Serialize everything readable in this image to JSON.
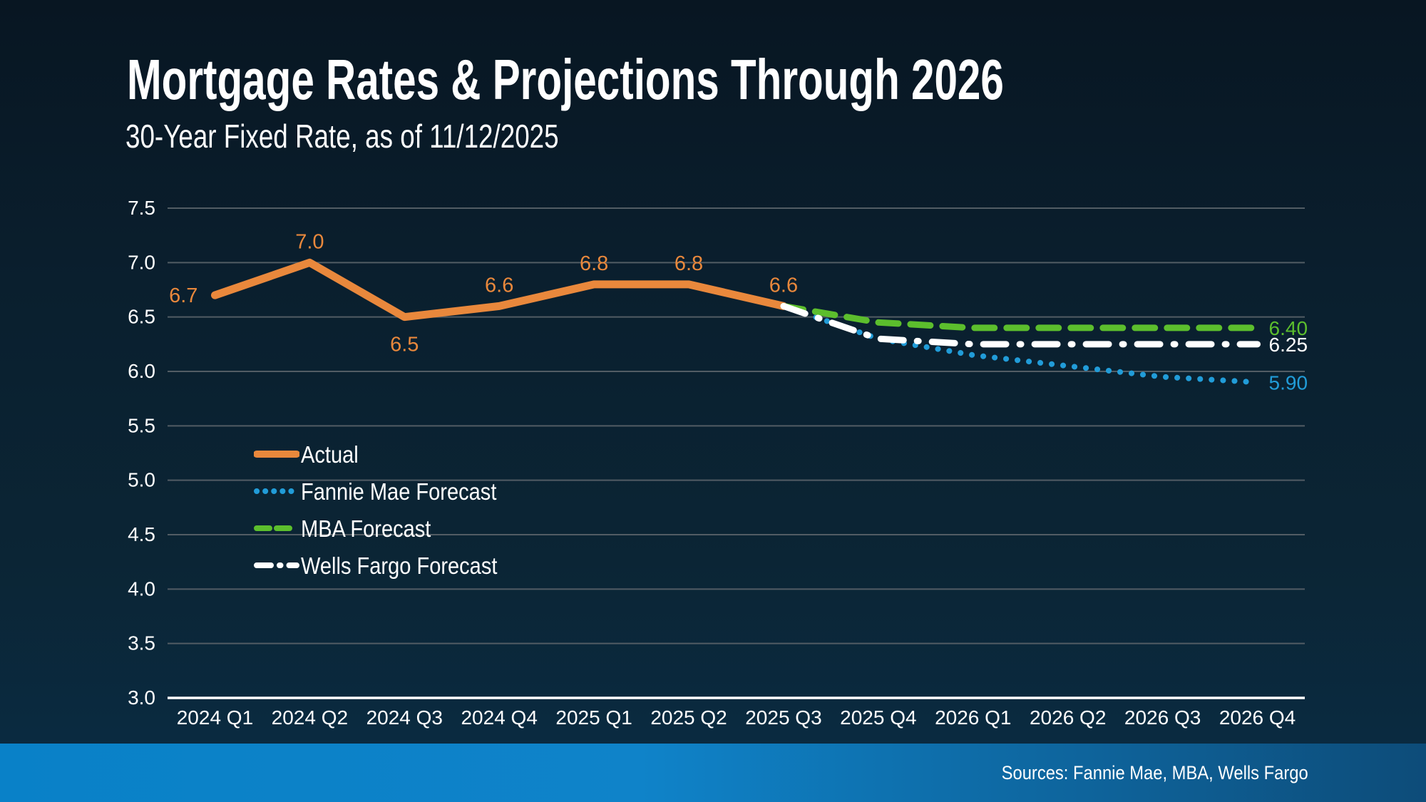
{
  "title": "Mortgage Rates & Projections Through 2026",
  "subtitle": "30-Year Fixed Rate, as of 11/12/2025",
  "footer": {
    "sources": "Sources: Fannie Mae, MBA, Wells Fargo"
  },
  "colors": {
    "background_top": "#081622",
    "background_bottom": "#0a2c44",
    "grid": "#525C64",
    "axis": "#FFFFFF",
    "text": "#FFFFFF",
    "footer_bar_left": "#0981C8",
    "footer_bar_right": "#0D4C79"
  },
  "chart_data": {
    "type": "line",
    "categories": [
      "2024 Q1",
      "2024 Q2",
      "2024 Q3",
      "2024 Q4",
      "2025 Q1",
      "2025 Q2",
      "2025 Q3",
      "2025 Q4",
      "2026 Q1",
      "2026 Q2",
      "2026 Q3",
      "2026 Q4"
    ],
    "ylim": [
      3.0,
      7.5
    ],
    "ytick_step": 0.5,
    "grid": true,
    "legend_position": "inside-left",
    "series": [
      {
        "name": "Actual",
        "color": "#E9883C",
        "line_style": "solid",
        "start_index": 0,
        "values": [
          6.7,
          7.0,
          6.5,
          6.6,
          6.8,
          6.8,
          6.6
        ],
        "point_labels": [
          {
            "text": "6.7",
            "pos": "left"
          },
          {
            "text": "7.0",
            "pos": "above"
          },
          {
            "text": "6.5",
            "pos": "below"
          },
          {
            "text": "6.6",
            "pos": "above"
          },
          {
            "text": "6.8",
            "pos": "above"
          },
          {
            "text": "6.8",
            "pos": "above"
          },
          {
            "text": "6.6",
            "pos": "above"
          }
        ]
      },
      {
        "name": "Fannie Mae Forecast",
        "color": "#219CD8",
        "line_style": "dotted",
        "start_index": 6,
        "values": [
          6.6,
          6.3,
          6.15,
          6.05,
          5.95,
          5.9
        ],
        "end_label": "5.90"
      },
      {
        "name": "MBA Forecast",
        "color": "#5CBE2D",
        "line_style": "dashed",
        "start_index": 6,
        "values": [
          6.6,
          6.45,
          6.4,
          6.4,
          6.4,
          6.4
        ],
        "end_label": "6.40"
      },
      {
        "name": "Wells Fargo Forecast",
        "color": "#FFFFFF",
        "line_style": "dashdot",
        "start_index": 6,
        "values": [
          6.6,
          6.3,
          6.25,
          6.25,
          6.25,
          6.25
        ],
        "end_label": "6.25"
      }
    ]
  }
}
